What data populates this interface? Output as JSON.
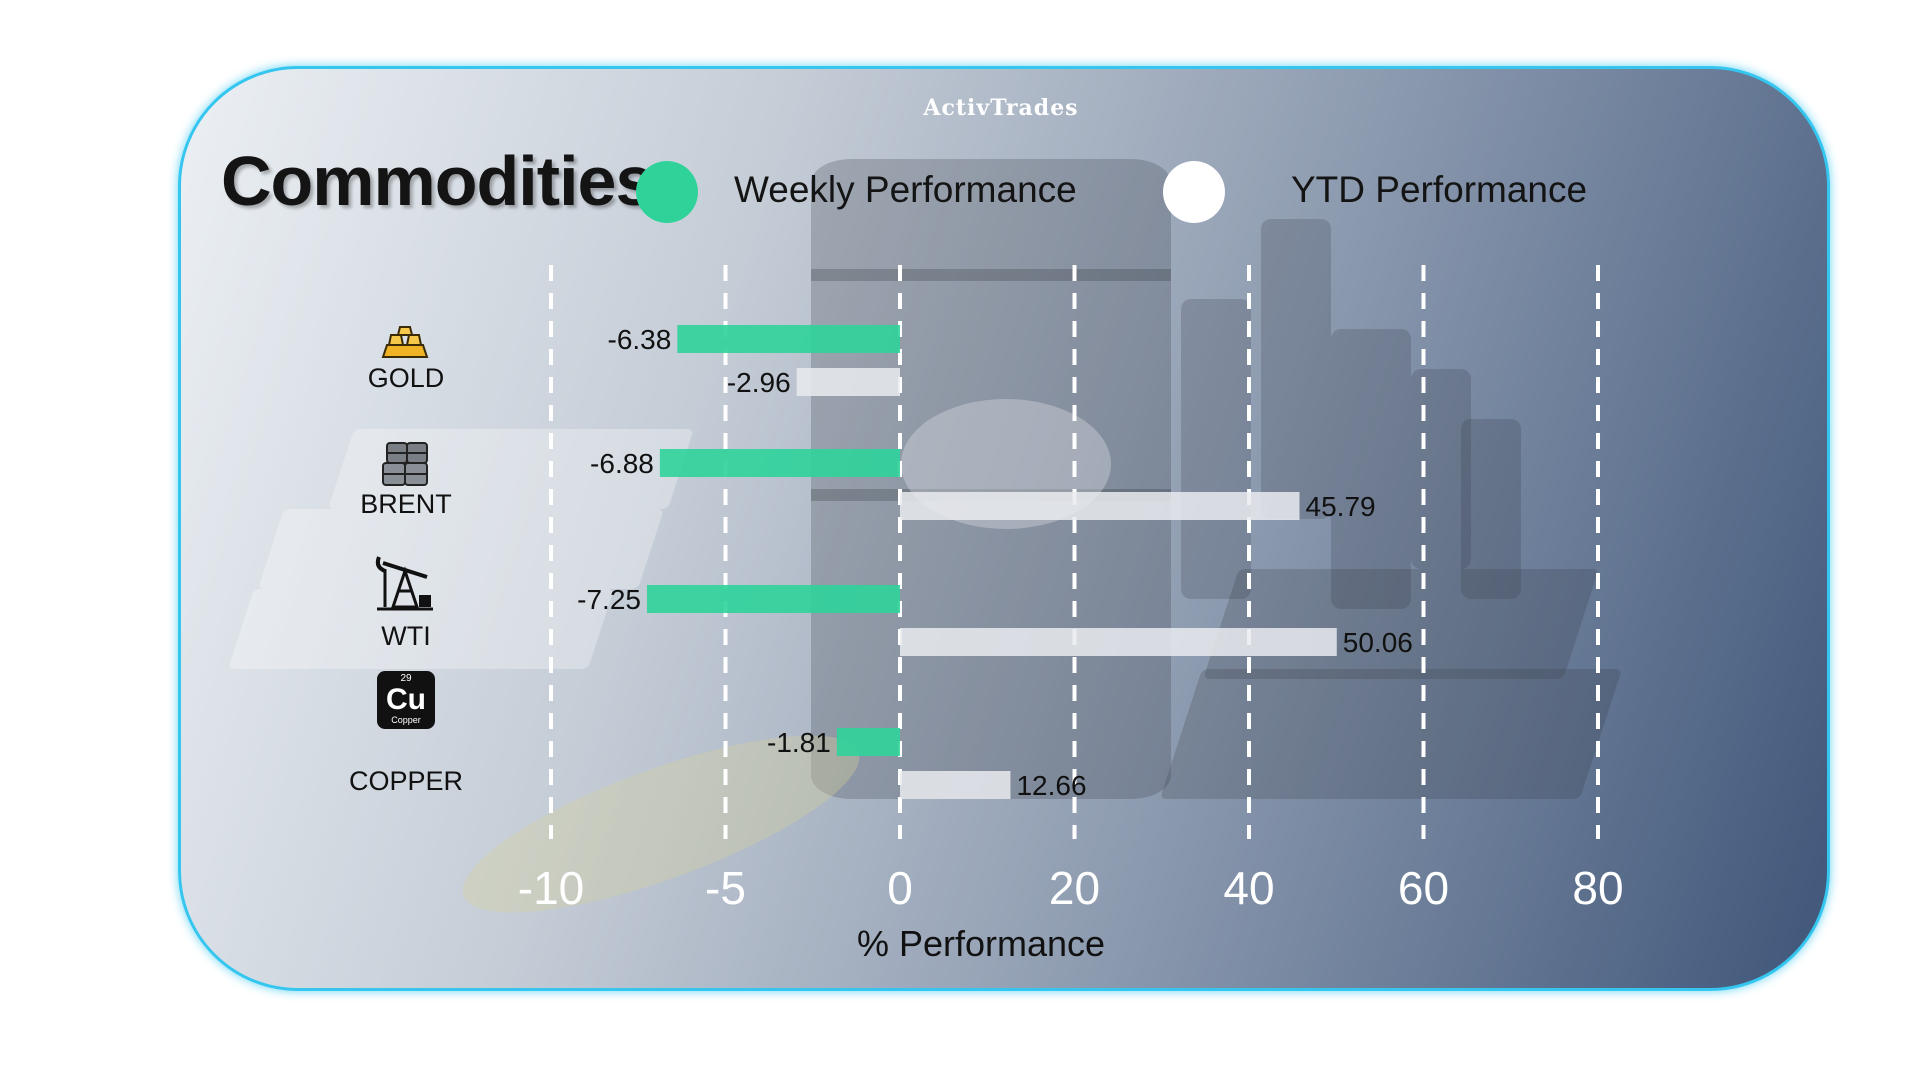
{
  "brand": "ActivTrades",
  "title": "Commodities",
  "legend": {
    "weekly": "Weekly Performance",
    "ytd": "YTD Performance"
  },
  "colors": {
    "weekly": "#2fd39a",
    "ytd": "#e9ebef",
    "accent_border": "#35c6f0"
  },
  "categories": [
    {
      "name": "GOLD",
      "icon": "gold-bars-icon"
    },
    {
      "name": "BRENT",
      "icon": "oil-barrels-icon"
    },
    {
      "name": "WTI",
      "icon": "oil-pump-icon"
    },
    {
      "name": "COPPER",
      "icon": "copper-element-icon",
      "icon_symbol": "Cu",
      "icon_number": "29",
      "icon_caption": "Copper"
    }
  ],
  "chart_data": {
    "type": "bar",
    "orientation": "horizontal",
    "categories": [
      "GOLD",
      "BRENT",
      "WTI",
      "COPPER"
    ],
    "series": [
      {
        "name": "Weekly Performance",
        "values": [
          -6.38,
          -6.88,
          -7.25,
          -1.81
        ],
        "labels": [
          "-6.38",
          "-6.88",
          "-7.25",
          "-1.81"
        ]
      },
      {
        "name": "YTD Performance",
        "values": [
          -2.96,
          45.79,
          50.06,
          12.66
        ],
        "labels": [
          "-2.96",
          "45.79",
          "50.06",
          "12.66"
        ]
      }
    ],
    "x_ticks": [
      -10,
      -5,
      0,
      20,
      40,
      60,
      80
    ],
    "x_tick_labels": [
      "-10",
      "-5",
      "0",
      "20",
      "40",
      "60",
      "80"
    ],
    "x_scale": "piecewise: -10..0 in steps of 5, 0..80 in steps of 20 (equal spacing per tick)",
    "xlabel": "% Performance",
    "grid": "vertical dashed",
    "legend_position": "top"
  }
}
